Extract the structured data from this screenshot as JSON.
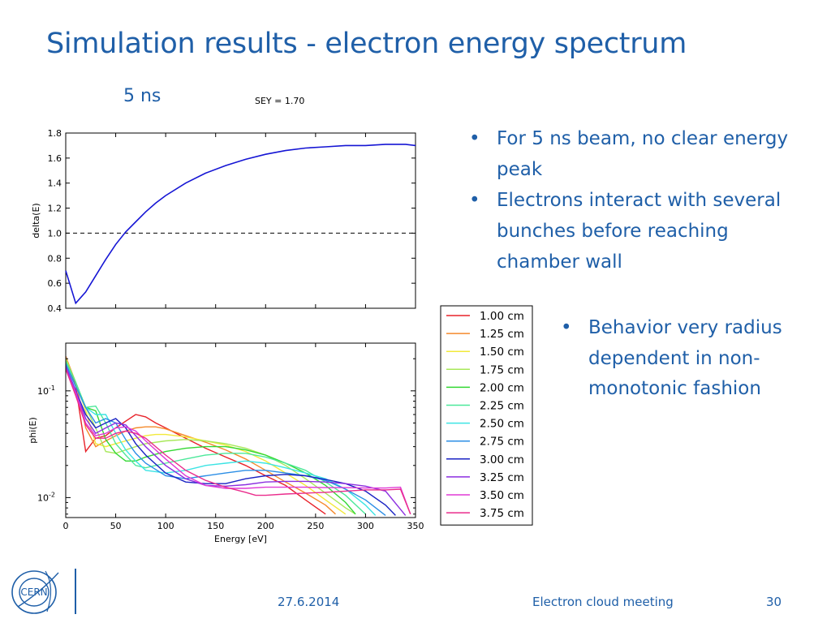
{
  "slide": {
    "title": "Simulation results - electron energy spectrum",
    "subtitle": "5 ns",
    "sey_label": "SEY = 1.70",
    "bullets_top": [
      "For 5 ns beam, no clear energy peak",
      "Electrons interact with several bunches before reaching chamber wall"
    ],
    "bullets_bottom": [
      "Behavior very radius dependent in non-monotonic fashion"
    ],
    "footer": {
      "date": "27.6.2014",
      "meeting": "Electron cloud meeting",
      "page": "30"
    },
    "logo_text": "CERN"
  },
  "chart_data": [
    {
      "type": "line",
      "ylabel": "delta(E)",
      "xlim": [
        0,
        350
      ],
      "ylim": [
        0.4,
        1.8
      ],
      "yticks": [
        "0.4",
        "0.6",
        "0.8",
        "1.0",
        "1.2",
        "1.4",
        "1.6",
        "1.8"
      ],
      "grid": false,
      "reference_line": {
        "y": 1.0,
        "style": "dashed",
        "color": "#000000"
      },
      "series": [
        {
          "color": "#1515d4",
          "x": [
            0,
            10,
            20,
            30,
            40,
            50,
            60,
            70,
            80,
            90,
            100,
            120,
            140,
            160,
            180,
            200,
            220,
            240,
            260,
            280,
            300,
            320,
            340,
            350
          ],
          "y": [
            0.7,
            0.44,
            0.53,
            0.66,
            0.79,
            0.91,
            1.01,
            1.09,
            1.17,
            1.24,
            1.3,
            1.4,
            1.48,
            1.54,
            1.59,
            1.63,
            1.66,
            1.68,
            1.69,
            1.7,
            1.7,
            1.71,
            1.71,
            1.7
          ]
        }
      ]
    },
    {
      "type": "line",
      "xlabel": "Energy [eV]",
      "ylabel": "phi(E)",
      "xlim": [
        0,
        350
      ],
      "ylim": [
        0.0065,
        0.28
      ],
      "yscale": "log",
      "xticks": [
        "0",
        "50",
        "100",
        "150",
        "200",
        "250",
        "300",
        "350"
      ],
      "yticks": [
        "10^-1",
        "10^-2"
      ],
      "grid": false,
      "legend": "outside-right",
      "series": [
        {
          "name": "1.00 cm",
          "color": "#e8222a",
          "x": [
            0,
            10,
            20,
            30,
            40,
            50,
            60,
            70,
            80,
            90,
            100,
            120,
            140,
            160,
            180,
            200,
            220,
            240,
            260
          ],
          "y": [
            0.21,
            0.11,
            0.027,
            0.036,
            0.038,
            0.045,
            0.052,
            0.06,
            0.057,
            0.05,
            0.045,
            0.036,
            0.029,
            0.024,
            0.02,
            0.016,
            0.013,
            0.0095,
            0.007
          ]
        },
        {
          "name": "1.25 cm",
          "color": "#f58a2c",
          "x": [
            0,
            10,
            20,
            30,
            40,
            50,
            60,
            70,
            80,
            90,
            100,
            120,
            140,
            160,
            180,
            200,
            220,
            240,
            260,
            270
          ],
          "y": [
            0.21,
            0.12,
            0.045,
            0.03,
            0.034,
            0.038,
            0.042,
            0.045,
            0.046,
            0.046,
            0.044,
            0.038,
            0.033,
            0.028,
            0.023,
            0.018,
            0.014,
            0.011,
            0.0085,
            0.007
          ]
        },
        {
          "name": "1.50 cm",
          "color": "#f2e93a",
          "x": [
            0,
            10,
            20,
            30,
            40,
            50,
            60,
            70,
            80,
            90,
            100,
            120,
            140,
            160,
            180,
            200,
            220,
            240,
            260,
            280
          ],
          "y": [
            0.2,
            0.12,
            0.065,
            0.032,
            0.03,
            0.032,
            0.034,
            0.036,
            0.038,
            0.039,
            0.039,
            0.037,
            0.034,
            0.031,
            0.027,
            0.022,
            0.017,
            0.013,
            0.0095,
            0.007
          ]
        },
        {
          "name": "1.75 cm",
          "color": "#a8e85a",
          "x": [
            0,
            10,
            20,
            30,
            40,
            50,
            60,
            70,
            80,
            100,
            120,
            140,
            160,
            180,
            200,
            220,
            240,
            260,
            280,
            290
          ],
          "y": [
            0.2,
            0.12,
            0.07,
            0.045,
            0.027,
            0.026,
            0.028,
            0.03,
            0.032,
            0.034,
            0.035,
            0.034,
            0.032,
            0.029,
            0.025,
            0.02,
            0.015,
            0.011,
            0.008,
            0.007
          ]
        },
        {
          "name": "2.00 cm",
          "color": "#33d833",
          "x": [
            0,
            10,
            20,
            30,
            40,
            50,
            60,
            70,
            80,
            100,
            120,
            140,
            160,
            180,
            200,
            220,
            240,
            260,
            280,
            290
          ],
          "y": [
            0.19,
            0.12,
            0.07,
            0.065,
            0.035,
            0.026,
            0.022,
            0.022,
            0.024,
            0.027,
            0.029,
            0.03,
            0.03,
            0.028,
            0.025,
            0.021,
            0.017,
            0.013,
            0.009,
            0.007
          ]
        },
        {
          "name": "2.25 cm",
          "color": "#4ce89a",
          "x": [
            0,
            10,
            20,
            30,
            40,
            50,
            60,
            70,
            80,
            100,
            120,
            140,
            160,
            180,
            200,
            220,
            240,
            260,
            280,
            300
          ],
          "y": [
            0.19,
            0.12,
            0.07,
            0.072,
            0.05,
            0.032,
            0.025,
            0.02,
            0.019,
            0.021,
            0.023,
            0.025,
            0.026,
            0.026,
            0.024,
            0.021,
            0.018,
            0.014,
            0.0105,
            0.007
          ]
        },
        {
          "name": "2.50 cm",
          "color": "#3de4e4",
          "x": [
            0,
            10,
            20,
            30,
            40,
            50,
            60,
            70,
            80,
            100,
            120,
            140,
            160,
            180,
            200,
            220,
            240,
            260,
            280,
            300,
            310
          ],
          "y": [
            0.18,
            0.11,
            0.07,
            0.06,
            0.06,
            0.04,
            0.028,
            0.022,
            0.018,
            0.017,
            0.018,
            0.02,
            0.021,
            0.022,
            0.021,
            0.019,
            0.017,
            0.015,
            0.012,
            0.0085,
            0.0068
          ]
        },
        {
          "name": "2.75 cm",
          "color": "#2b8ee6",
          "x": [
            0,
            10,
            20,
            30,
            40,
            50,
            60,
            70,
            80,
            100,
            120,
            140,
            160,
            180,
            200,
            220,
            240,
            260,
            280,
            300,
            320
          ],
          "y": [
            0.18,
            0.11,
            0.07,
            0.05,
            0.055,
            0.05,
            0.035,
            0.026,
            0.021,
            0.016,
            0.015,
            0.016,
            0.017,
            0.018,
            0.018,
            0.017,
            0.016,
            0.0145,
            0.012,
            0.0095,
            0.0068
          ]
        },
        {
          "name": "3.00 cm",
          "color": "#1a23c4",
          "x": [
            0,
            10,
            20,
            30,
            40,
            50,
            60,
            70,
            80,
            100,
            120,
            140,
            160,
            180,
            200,
            220,
            240,
            260,
            280,
            300,
            320,
            330
          ],
          "y": [
            0.17,
            0.1,
            0.06,
            0.045,
            0.05,
            0.055,
            0.045,
            0.032,
            0.025,
            0.017,
            0.014,
            0.0135,
            0.0135,
            0.015,
            0.016,
            0.0165,
            0.016,
            0.0148,
            0.0135,
            0.0115,
            0.0085,
            0.0068
          ]
        },
        {
          "name": "3.25 cm",
          "color": "#8c2fe0",
          "x": [
            0,
            10,
            20,
            30,
            40,
            50,
            60,
            70,
            80,
            100,
            120,
            140,
            160,
            180,
            200,
            220,
            240,
            260,
            280,
            300,
            320,
            340
          ],
          "y": [
            0.17,
            0.1,
            0.055,
            0.04,
            0.045,
            0.05,
            0.048,
            0.038,
            0.03,
            0.02,
            0.015,
            0.013,
            0.0128,
            0.0132,
            0.014,
            0.0142,
            0.0142,
            0.014,
            0.0135,
            0.0128,
            0.0115,
            0.0068
          ]
        },
        {
          "name": "3.50 cm",
          "color": "#e03ad6",
          "x": [
            0,
            10,
            20,
            30,
            40,
            50,
            60,
            70,
            80,
            100,
            120,
            140,
            160,
            180,
            200,
            220,
            240,
            260,
            280,
            300,
            320,
            335,
            345
          ],
          "y": [
            0.16,
            0.095,
            0.05,
            0.038,
            0.04,
            0.045,
            0.046,
            0.042,
            0.034,
            0.023,
            0.016,
            0.013,
            0.0122,
            0.0122,
            0.0125,
            0.0125,
            0.0125,
            0.0124,
            0.0124,
            0.0123,
            0.0123,
            0.0125,
            0.007
          ]
        },
        {
          "name": "3.75 cm",
          "color": "#ea2c8c",
          "x": [
            0,
            10,
            20,
            30,
            40,
            50,
            60,
            70,
            80,
            100,
            120,
            140,
            160,
            180,
            190,
            200,
            220,
            240,
            260,
            280,
            300,
            320,
            335,
            345
          ],
          "y": [
            0.16,
            0.09,
            0.048,
            0.036,
            0.036,
            0.04,
            0.042,
            0.04,
            0.036,
            0.025,
            0.018,
            0.0145,
            0.0125,
            0.0112,
            0.0105,
            0.0105,
            0.0108,
            0.011,
            0.0112,
            0.0115,
            0.0118,
            0.0118,
            0.012,
            0.007
          ]
        }
      ]
    }
  ]
}
